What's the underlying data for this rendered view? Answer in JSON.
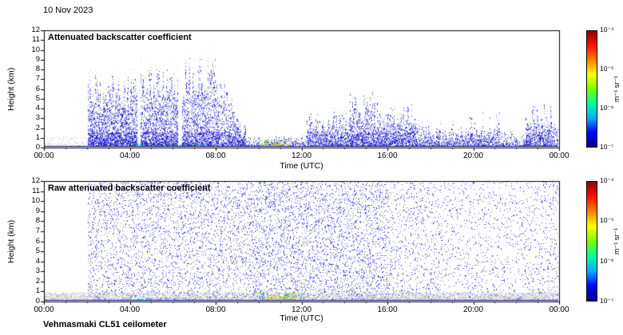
{
  "figure": {
    "date_label": "10 Nov 2023",
    "footer": "Vehmasmaki CL51 ceilometer",
    "background": "#ffffff"
  },
  "colorbar": {
    "tick_labels": [
      "10⁻⁴",
      "10⁻⁵",
      "10⁻⁶",
      "10⁻⁷"
    ],
    "unit_label": "m⁻¹ sr⁻¹",
    "colormap_stops_bottom_to_top": [
      "#000090",
      "#0000ff",
      "#00b0ff",
      "#00ff9c",
      "#7aff00",
      "#ffff00",
      "#ff8000",
      "#ff1000",
      "#900000"
    ]
  },
  "chart_data": [
    {
      "type": "heatmap",
      "title": "Attenuated backscatter coefficient",
      "xlabel": "Time (UTC)",
      "ylabel": "Height (km)",
      "x_tick_labels": [
        "00:00",
        "04:00",
        "08:00",
        "12:00",
        "16:00",
        "20:00",
        "00:00"
      ],
      "y_tick_labels": [
        "0",
        "1",
        "2",
        "3",
        "4",
        "5",
        "6",
        "7",
        "8",
        "9",
        "10",
        "11",
        "12"
      ],
      "xlim_hours": [
        0,
        24
      ],
      "ylim_km": [
        0,
        12
      ],
      "value_scale": "log",
      "value_range_m1sr1": [
        1e-07,
        0.0001
      ],
      "grid": false,
      "point_color_palette": [
        "#1a1ac8",
        "#3434dc",
        "#5454e8",
        "#7b7bf0",
        "#a2a2f6"
      ],
      "ground_line": {
        "color": "#1414b4",
        "height_km": 0.18
      },
      "cloud_segments": [
        {
          "t_start": 0.0,
          "t_end": 2.3,
          "top_km": 5.5,
          "top_var_km": 2.0,
          "density": 1.0
        },
        {
          "t_start": 2.45,
          "t_end": 4.2,
          "top_km": 6.5,
          "top_var_km": 2.2,
          "density": 1.0
        },
        {
          "t_start": 4.4,
          "t_end": 6.1,
          "top_km": 7.0,
          "top_var_km": 2.5,
          "density": 0.95
        },
        {
          "t_start": 6.1,
          "t_end": 7.35,
          "top_km": 6.0,
          "top_km_end": 1.5,
          "top_var_km": 1.5,
          "density": 0.6
        },
        {
          "t_start": 7.35,
          "t_end": 10.2,
          "top_km": 0.7,
          "top_var_km": 0.5,
          "density": 0.12
        },
        {
          "t_start": 10.2,
          "t_end": 12.2,
          "top_km": 2.6,
          "top_var_km": 1.4,
          "density": 0.45
        },
        {
          "t_start": 12.2,
          "t_end": 13.4,
          "top_km": 4.2,
          "top_var_km": 1.6,
          "density": 0.65
        },
        {
          "t_start": 13.4,
          "t_end": 15.3,
          "top_km": 3.2,
          "top_var_km": 1.6,
          "density": 0.55
        },
        {
          "t_start": 15.3,
          "t_end": 17.6,
          "top_km": 1.6,
          "top_var_km": 1.2,
          "density": 0.25
        },
        {
          "t_start": 17.6,
          "t_end": 19.2,
          "top_km": 2.4,
          "top_var_km": 1.4,
          "density": 0.3
        },
        {
          "t_start": 19.2,
          "t_end": 20.4,
          "top_km": 1.0,
          "top_var_km": 0.8,
          "density": 0.15
        },
        {
          "t_start": 20.4,
          "t_end": 21.6,
          "top_km": 3.2,
          "top_var_km": 1.4,
          "density": 0.5
        },
        {
          "t_start": 21.6,
          "t_end": 22.3,
          "top_km": 1.8,
          "top_var_km": 1.0,
          "density": 0.25
        },
        {
          "t_start": 22.3,
          "t_end": 24.0,
          "top_km": 4.5,
          "top_km_end": 6.0,
          "top_var_km": 1.6,
          "density": 0.85
        }
      ],
      "surface_features": [
        {
          "t_start": 1.6,
          "t_end": 5.5,
          "h_km": 0.45,
          "color": "#22aa33",
          "density": 0.3
        },
        {
          "t_start": 2.3,
          "t_end": 2.7,
          "h_km": 0.35,
          "color": "#00bbcc",
          "density": 0.5
        },
        {
          "t_start": 5.0,
          "t_end": 5.4,
          "h_km": 0.3,
          "color": "#00bbcc",
          "density": 0.5
        },
        {
          "t_start": 8.2,
          "t_end": 9.5,
          "h_km": 0.5,
          "color": "#dedc00",
          "density": 0.9
        },
        {
          "t_start": 8.0,
          "t_end": 9.8,
          "h_km": 0.75,
          "color": "#22aa33",
          "density": 0.3
        },
        {
          "t_start": 13.0,
          "t_end": 14.3,
          "h_km": 0.3,
          "color": "#22aa33",
          "density": 0.25
        }
      ]
    },
    {
      "type": "heatmap",
      "title": "Raw attenuated backscatter coefficient",
      "xlabel": "Time (UTC)",
      "ylabel": "Height (km)",
      "x_tick_labels": [
        "00:00",
        "04:00",
        "08:00",
        "12:00",
        "16:00",
        "20:00",
        "00:00"
      ],
      "y_tick_labels": [
        "0",
        "1",
        "2",
        "3",
        "4",
        "5",
        "6",
        "7",
        "8",
        "9",
        "10",
        "11",
        "12"
      ],
      "xlim_hours": [
        0,
        24
      ],
      "ylim_km": [
        0,
        12
      ],
      "value_scale": "log",
      "value_range_m1sr1": [
        1e-07,
        0.0001
      ],
      "grid": false,
      "noise_color_palette": [
        "#3030d4",
        "#5252e2",
        "#8585ee"
      ],
      "base_coverage": 0.13,
      "noise_regions": [
        {
          "t_start": 0.0,
          "t_end": 7.5,
          "density": 0.8
        },
        {
          "t_start": 7.5,
          "t_end": 14.0,
          "density": 1.0
        },
        {
          "t_start": 14.0,
          "t_end": 16.5,
          "density": 0.55
        },
        {
          "t_start": 16.5,
          "t_end": 21.0,
          "density": 0.42
        },
        {
          "t_start": 21.0,
          "t_end": 24.0,
          "density": 0.5
        }
      ],
      "gray_band": {
        "top_km": 0.9,
        "color": "#bcbcc8"
      },
      "ground_line": {
        "color": "#1414b4",
        "height_km": 0.18
      },
      "surface_features": [
        {
          "t_start": 8.3,
          "t_end": 9.7,
          "h_km": 0.6,
          "color": "#dedc00",
          "density": 0.95
        },
        {
          "t_start": 7.9,
          "t_end": 10.2,
          "h_km": 0.9,
          "color": "#22aa33",
          "density": 0.35
        },
        {
          "t_start": 1.5,
          "t_end": 5.5,
          "h_km": 0.4,
          "color": "#00bbcc",
          "density": 0.22
        },
        {
          "t_start": 12.5,
          "t_end": 14.5,
          "h_km": 0.3,
          "color": "#22aa33",
          "density": 0.2
        }
      ]
    }
  ]
}
